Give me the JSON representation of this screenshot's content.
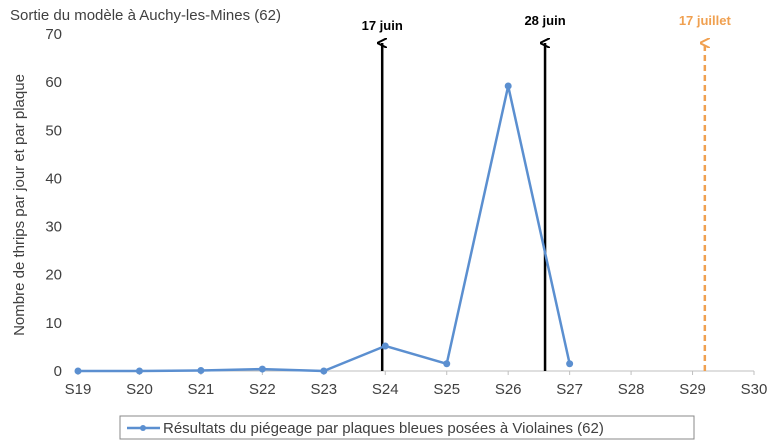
{
  "chart_data": {
    "type": "line",
    "title": "Sortie du modèle à Auchy-les-Mines (62)",
    "xlabel": "",
    "ylabel": "Nombre de thrips par jour et par plaque",
    "categories": [
      "S19",
      "S20",
      "S21",
      "S22",
      "S23",
      "S24",
      "S25",
      "S26",
      "S27",
      "S28",
      "S29",
      "S30"
    ],
    "ylim": [
      0,
      70
    ],
    "yticks": [
      0,
      10,
      20,
      30,
      40,
      50,
      60,
      70
    ],
    "grid": false,
    "legend_position": "bottom",
    "series": [
      {
        "name": "Résultats du piégeage par plaques bleues posées à Violaines (62)",
        "color": "#5b8fd0",
        "values": [
          0,
          0,
          0.1,
          0.4,
          0,
          5.2,
          1.5,
          59.2,
          1.5,
          null,
          null,
          null
        ]
      }
    ],
    "annotations": [
      {
        "label": "17 juin",
        "x": 4.95,
        "color": "#000000",
        "style": "solid"
      },
      {
        "label": "28 juin",
        "x": 7.6,
        "color": "#000000",
        "style": "solid"
      },
      {
        "label": "17 juillet",
        "x": 10.2,
        "color": "#f0a050",
        "style": "dashed"
      }
    ]
  }
}
